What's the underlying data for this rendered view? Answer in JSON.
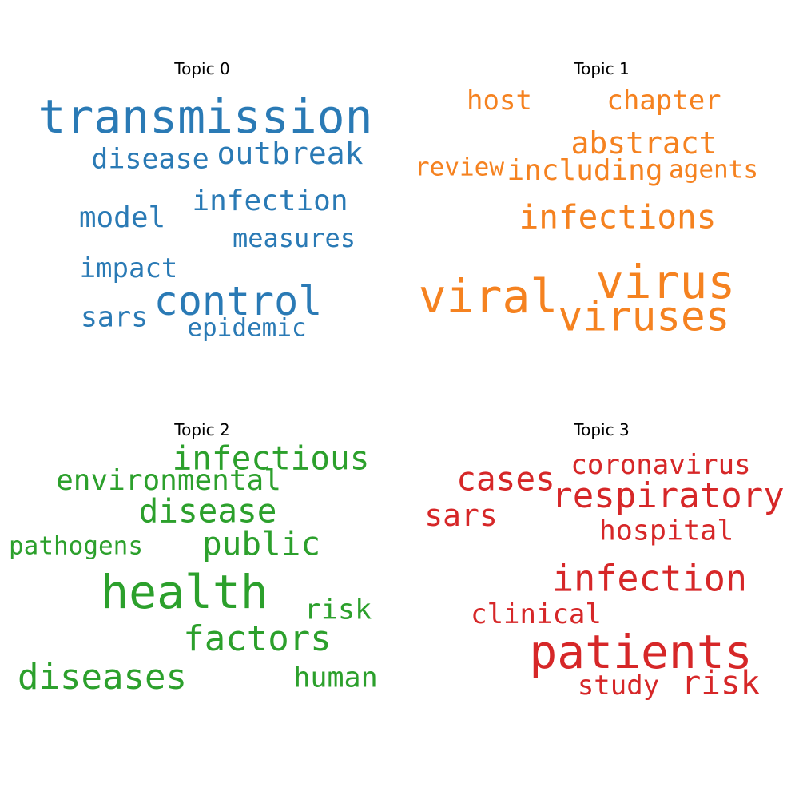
{
  "chart_data": [
    {
      "type": "wordcloud",
      "title": "Topic 0",
      "color": "#2a7ab5",
      "words": [
        {
          "text": "transmission",
          "weight": 1.0
        },
        {
          "text": "control",
          "weight": 0.85
        },
        {
          "text": "outbreak",
          "weight": 0.66
        },
        {
          "text": "infection",
          "weight": 0.62
        },
        {
          "text": "model",
          "weight": 0.62
        },
        {
          "text": "disease",
          "weight": 0.6
        },
        {
          "text": "sars",
          "weight": 0.58
        },
        {
          "text": "impact",
          "weight": 0.58
        },
        {
          "text": "measures",
          "weight": 0.55
        },
        {
          "text": "epidemic",
          "weight": 0.53
        }
      ]
    },
    {
      "type": "wordcloud",
      "title": "Topic 1",
      "color": "#f58220",
      "words": [
        {
          "text": "viral",
          "weight": 1.0
        },
        {
          "text": "virus",
          "weight": 1.0
        },
        {
          "text": "viruses",
          "weight": 0.88
        },
        {
          "text": "infections",
          "weight": 0.7
        },
        {
          "text": "abstract",
          "weight": 0.66
        },
        {
          "text": "including",
          "weight": 0.62
        },
        {
          "text": "host",
          "weight": 0.58
        },
        {
          "text": "chapter",
          "weight": 0.58
        },
        {
          "text": "review",
          "weight": 0.53
        },
        {
          "text": "agents",
          "weight": 0.53
        }
      ]
    },
    {
      "type": "wordcloud",
      "title": "Topic 2",
      "color": "#2ca02c",
      "words": [
        {
          "text": "health",
          "weight": 1.0
        },
        {
          "text": "factors",
          "weight": 0.75
        },
        {
          "text": "diseases",
          "weight": 0.75
        },
        {
          "text": "infectious",
          "weight": 0.7
        },
        {
          "text": "disease",
          "weight": 0.7
        },
        {
          "text": "public",
          "weight": 0.7
        },
        {
          "text": "environmental",
          "weight": 0.62
        },
        {
          "text": "risk",
          "weight": 0.6
        },
        {
          "text": "human",
          "weight": 0.6
        },
        {
          "text": "pathogens",
          "weight": 0.53
        }
      ]
    },
    {
      "type": "wordcloud",
      "title": "Topic 3",
      "color": "#d62728",
      "words": [
        {
          "text": "patients",
          "weight": 1.0
        },
        {
          "text": "infection",
          "weight": 0.78
        },
        {
          "text": "respiratory",
          "weight": 0.75
        },
        {
          "text": "cases",
          "weight": 0.7
        },
        {
          "text": "risk",
          "weight": 0.7
        },
        {
          "text": "sars",
          "weight": 0.66
        },
        {
          "text": "hospital",
          "weight": 0.6
        },
        {
          "text": "coronavirus",
          "weight": 0.58
        },
        {
          "text": "clinical",
          "weight": 0.58
        },
        {
          "text": "study",
          "weight": 0.58
        }
      ]
    }
  ]
}
